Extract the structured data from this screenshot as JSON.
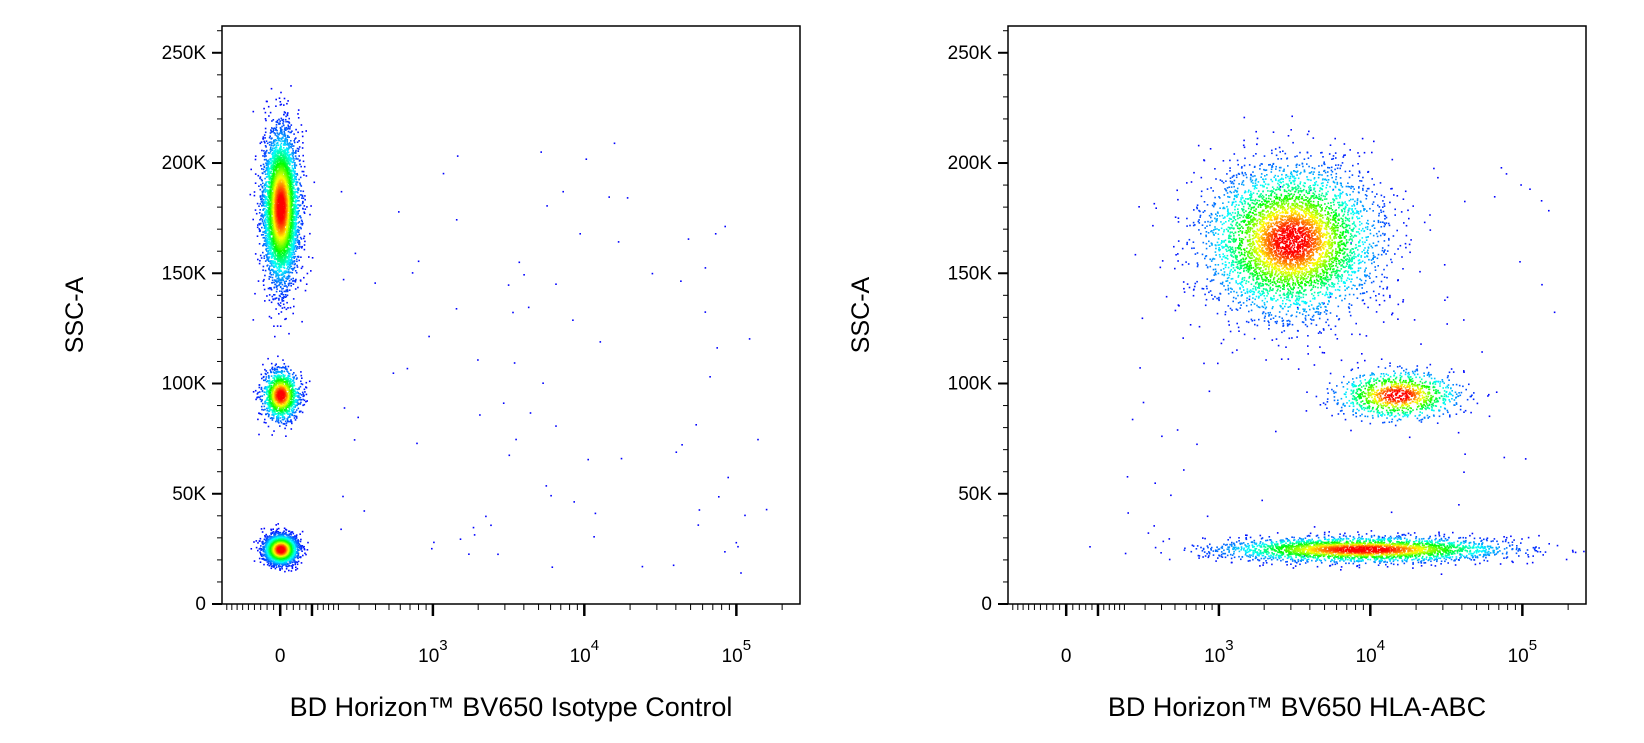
{
  "chart_data": [
    {
      "type": "scatter",
      "title": "",
      "xlabel": "BD Horizon™ BV650 Isotype Control",
      "ylabel": "SSC-A",
      "x_scale": "biexponential",
      "x_tick_labels": [
        {
          "value": 0,
          "label": "0"
        },
        {
          "value": 1000,
          "label": "10",
          "exp": "3"
        },
        {
          "value": 10000,
          "label": "10",
          "exp": "4"
        },
        {
          "value": 100000,
          "label": "10",
          "exp": "5"
        }
      ],
      "y_tick_labels": [
        {
          "value": 0,
          "label": "0"
        },
        {
          "value": 50000,
          "label": "50K"
        },
        {
          "value": 100000,
          "label": "100K"
        },
        {
          "value": 150000,
          "label": "150K"
        },
        {
          "value": 200000,
          "label": "200K"
        },
        {
          "value": 250000,
          "label": "250K"
        }
      ],
      "ylim": [
        0,
        262144
      ],
      "populations": [
        {
          "x": 0,
          "y": 180000,
          "sx": 0.0038,
          "sy": 0.18,
          "weight": 0.55
        },
        {
          "x": 0,
          "y": 95000,
          "sx": 0.0038,
          "sy": 0.06,
          "weight": 0.15
        },
        {
          "x": 0,
          "y": 25000,
          "sx": 0.0035,
          "sy": 0.035,
          "weight": 0.3
        }
      ],
      "colors": [
        "#0000ff",
        "#00ffff",
        "#00ff00",
        "#ffff00",
        "#ff0000"
      ]
    },
    {
      "type": "scatter",
      "title": "",
      "xlabel": "BD Horizon™ BV650 HLA-ABC",
      "ylabel": "SSC-A",
      "x_scale": "biexponential",
      "x_tick_labels": [
        {
          "value": 0,
          "label": "0"
        },
        {
          "value": 1000,
          "label": "10",
          "exp": "3"
        },
        {
          "value": 10000,
          "label": "10",
          "exp": "4"
        },
        {
          "value": 100000,
          "label": "10",
          "exp": "5"
        }
      ],
      "y_tick_labels": [
        {
          "value": 0,
          "label": "0"
        },
        {
          "value": 50000,
          "label": "50K"
        },
        {
          "value": 100000,
          "label": "100K"
        },
        {
          "value": 150000,
          "label": "150K"
        },
        {
          "value": 200000,
          "label": "200K"
        },
        {
          "value": 250000,
          "label": "250K"
        }
      ],
      "ylim": [
        0,
        262144
      ],
      "populations": [
        {
          "x": 3000,
          "y": 165000,
          "sx": 0.018,
          "sy": 0.18,
          "weight": 0.55
        },
        {
          "x": 15000,
          "y": 95000,
          "sx": 0.013,
          "sy": 0.06,
          "weight": 0.12
        },
        {
          "x": 9000,
          "y": 25000,
          "sx": 0.03,
          "sy": 0.03,
          "weight": 0.33
        }
      ],
      "colors": [
        "#0000ff",
        "#00ffff",
        "#00ff00",
        "#ffff00",
        "#ff0000"
      ]
    }
  ]
}
